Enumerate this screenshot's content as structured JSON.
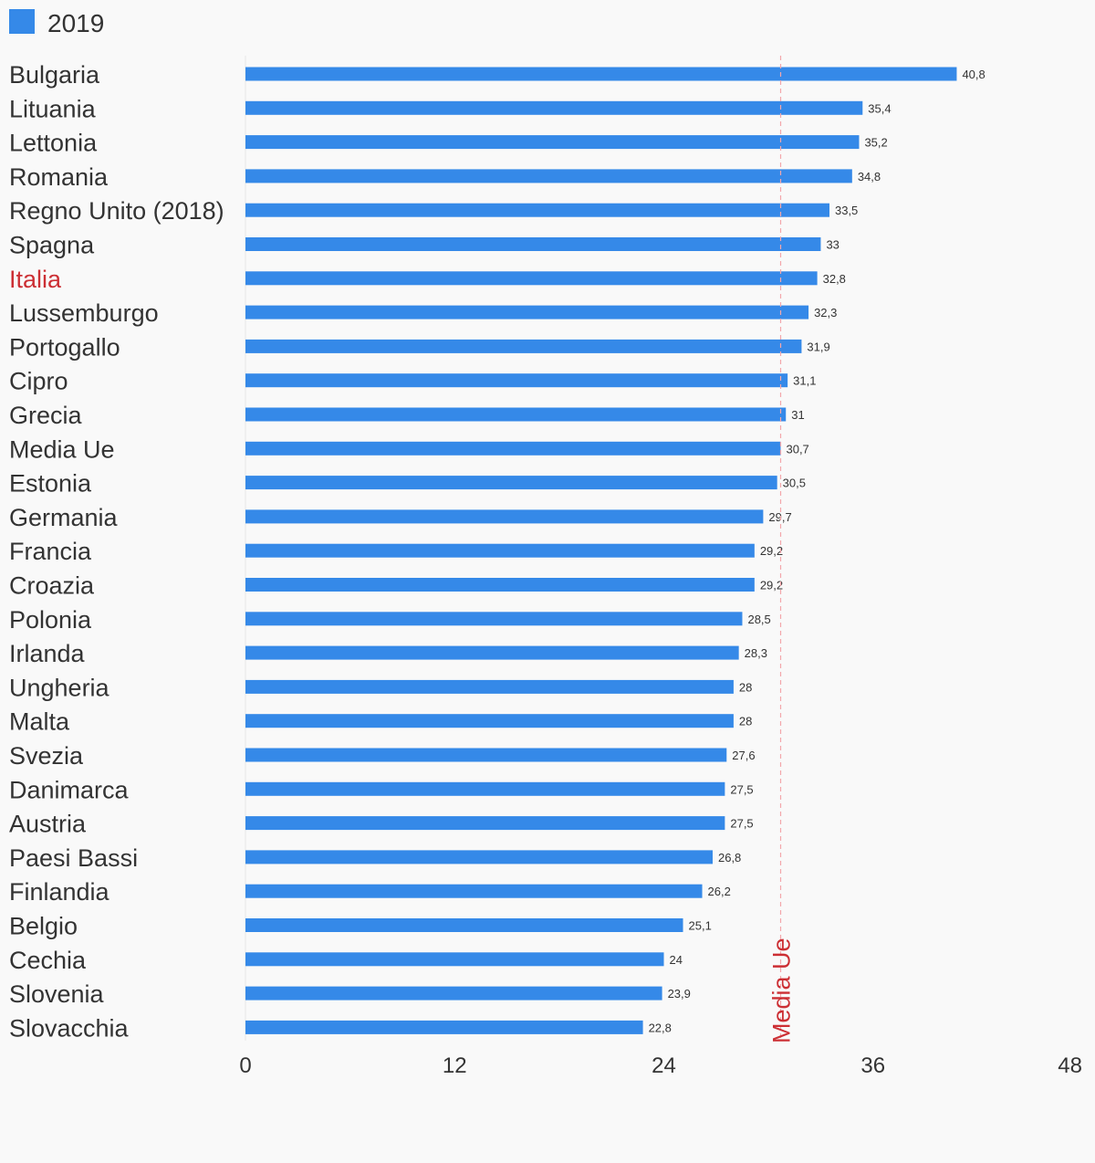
{
  "legend": {
    "label": "2019",
    "color": "#3589e8"
  },
  "colors": {
    "bar": "#3589e8",
    "highlight": "#cc2f34",
    "reference_line": "#f3a7ab",
    "text": "#333333",
    "background": "#f9f9f9"
  },
  "chart_data": {
    "type": "bar",
    "orientation": "horizontal",
    "title": "",
    "xlabel": "",
    "ylabel": "",
    "xlim": [
      0,
      48
    ],
    "xticks": [
      "0",
      "12",
      "24",
      "36",
      "48"
    ],
    "grid": false,
    "legend_position": "top-left",
    "highlight_category": "Italia",
    "reference_line": {
      "value": 30.7,
      "label": "Media Ue"
    },
    "categories": [
      "Bulgaria",
      "Lituania",
      "Lettonia",
      "Romania",
      "Regno Unito (2018)",
      "Spagna",
      "Italia",
      "Lussemburgo",
      "Portogallo",
      "Cipro",
      "Grecia",
      "Media Ue",
      "Estonia",
      "Germania",
      "Francia",
      "Croazia",
      "Polonia",
      "Irlanda",
      "Ungheria",
      "Malta",
      "Svezia",
      "Danimarca",
      "Austria",
      "Paesi Bassi",
      "Finlandia",
      "Belgio",
      "Cechia",
      "Slovenia",
      "Slovacchia"
    ],
    "series": [
      {
        "name": "2019",
        "values": [
          40.8,
          35.4,
          35.2,
          34.8,
          33.5,
          33,
          32.8,
          32.3,
          31.9,
          31.1,
          31,
          30.7,
          30.5,
          29.7,
          29.2,
          29.2,
          28.5,
          28.3,
          28,
          28,
          27.6,
          27.5,
          27.5,
          26.8,
          26.2,
          25.1,
          24,
          23.9,
          22.8
        ],
        "labels": [
          "40,8",
          "35,4",
          "35,2",
          "34,8",
          "33,5",
          "33",
          "32,8",
          "32,3",
          "31,9",
          "31,1",
          "31",
          "30,7",
          "30,5",
          "29,7",
          "29,2",
          "29,2",
          "28,5",
          "28,3",
          "28",
          "28",
          "27,6",
          "27,5",
          "27,5",
          "26,8",
          "26,2",
          "25,1",
          "24",
          "23,9",
          "22,8"
        ]
      }
    ]
  }
}
